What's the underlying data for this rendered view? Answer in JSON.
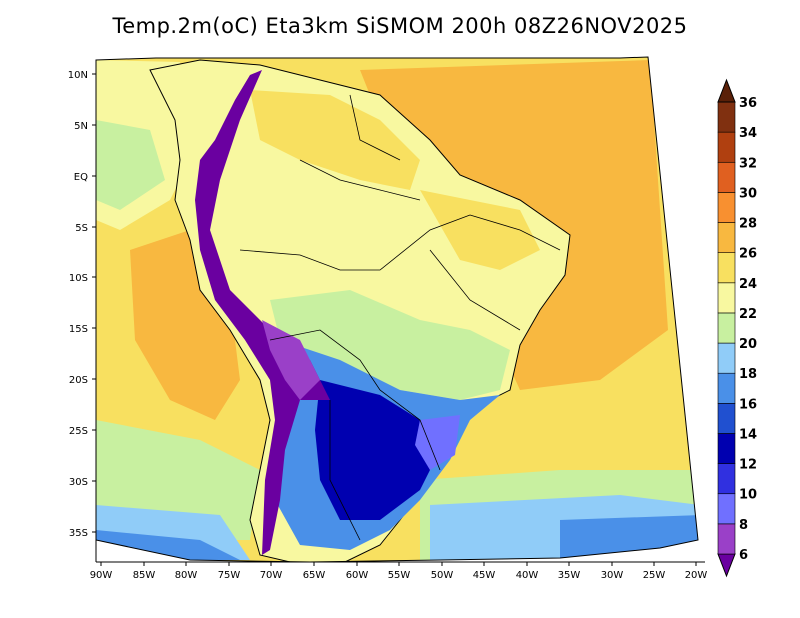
{
  "title": "Temp.2m(oC) Eta3km SiSMOM 200h 08Z26NOV2025",
  "lat_labels": [
    "10N",
    "5N",
    "EQ",
    "5S",
    "10S",
    "15S",
    "20S",
    "25S",
    "30S",
    "35S"
  ],
  "lon_labels": [
    "90W",
    "85W",
    "80W",
    "75W",
    "70W",
    "65W",
    "60W",
    "55W",
    "50W",
    "45W",
    "40W",
    "35W",
    "30W",
    "25W",
    "20W"
  ],
  "colorbar": {
    "labels": [
      "6",
      "8",
      "10",
      "12",
      "14",
      "16",
      "18",
      "20",
      "22",
      "24",
      "26",
      "28",
      "30",
      "32",
      "34",
      "36"
    ],
    "colors": [
      "#6a00a0",
      "#9a40c8",
      "#7070ff",
      "#3030e0",
      "#0000b0",
      "#2050d0",
      "#4a90e8",
      "#90ccf8",
      "#c8f0a0",
      "#f8f8a0",
      "#f8e060",
      "#f8b840",
      "#f89030",
      "#e06020",
      "#b04010",
      "#803010",
      "#5a2008"
    ]
  },
  "colors": {
    "ocean_north": "#f8b840",
    "ocean_mid": "#f8e060",
    "ocean_south": "#c8f0a0",
    "ocean_far_south": "#90ccf8",
    "land_warm": "#f8f8a0",
    "land_hot": "#f8e060",
    "andes_cold": "#6a00a0",
    "patagonia": "#2050d0",
    "south_cold": "#0000b0"
  }
}
